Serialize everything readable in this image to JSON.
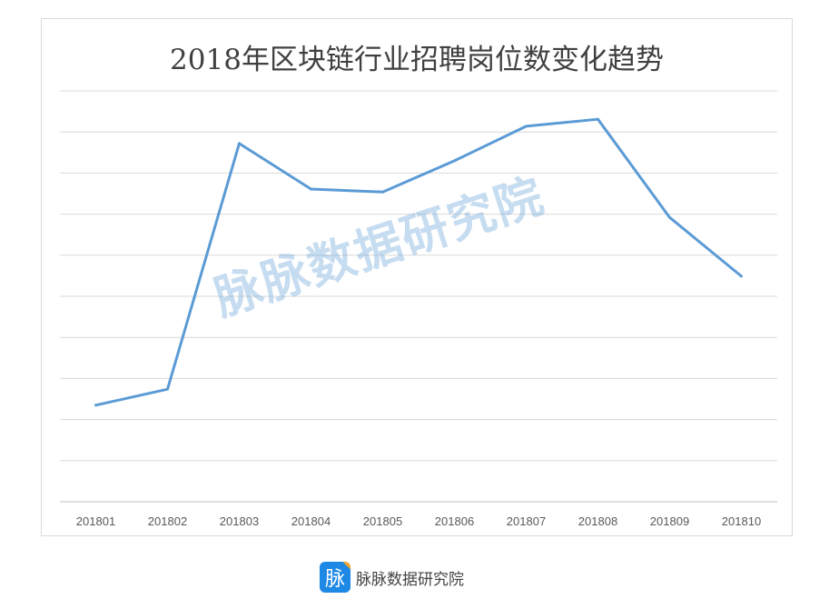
{
  "chart_data": {
    "type": "line",
    "title": "2018年区块链行业招聘岗位数变化趋势",
    "categories": [
      "201801",
      "201802",
      "201803",
      "201804",
      "201805",
      "201806",
      "201807",
      "201808",
      "201809",
      "201810"
    ],
    "values": [
      2.35,
      2.74,
      8.72,
      7.61,
      7.54,
      8.3,
      9.14,
      9.31,
      6.92,
      5.49
    ],
    "ylim": [
      0,
      10
    ],
    "y_tick_labels": "none",
    "grid": true,
    "line_color": "#5b9bd5"
  },
  "watermark": "脉脉数据研究院",
  "footer": {
    "logo_char": "脉",
    "text": "脉脉数据研究院"
  }
}
